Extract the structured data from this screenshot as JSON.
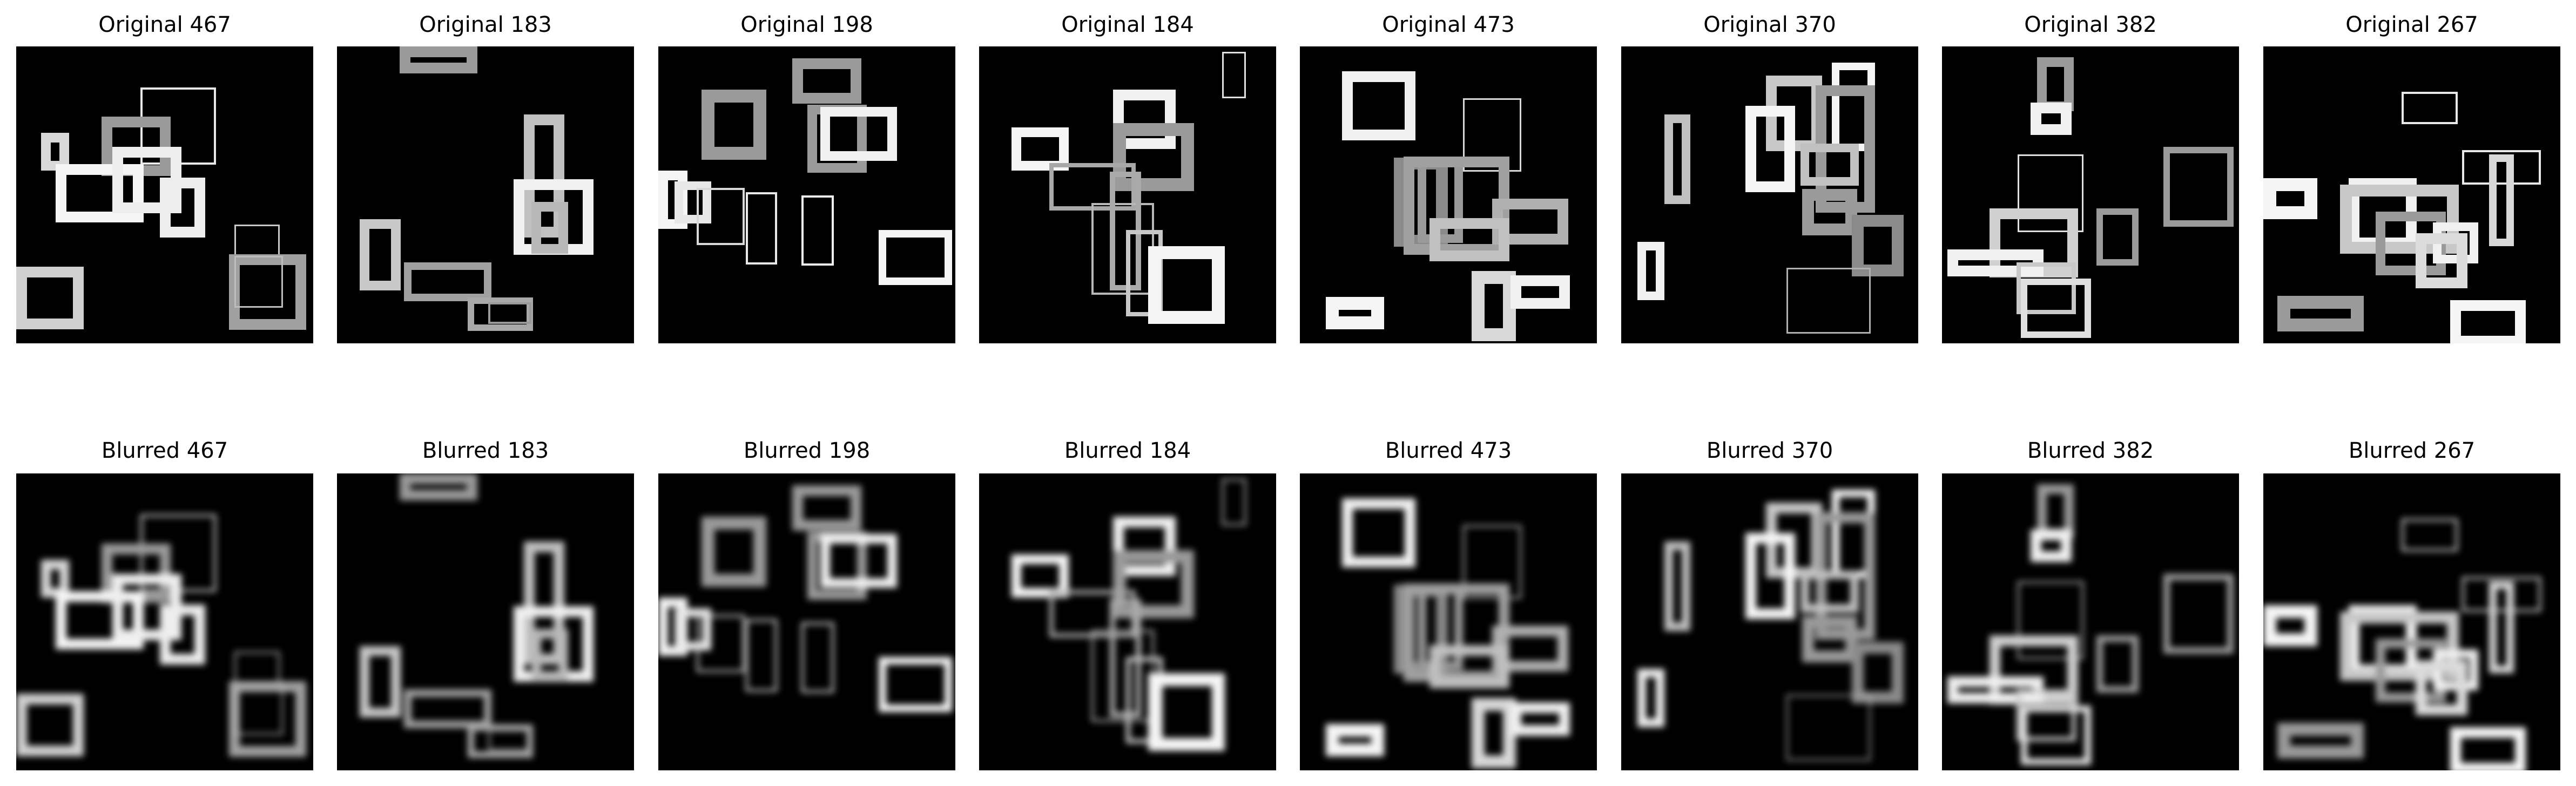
{
  "figure": {
    "background": "#000000",
    "panels": [
      {
        "row": "original",
        "title": "Original 467",
        "index": 0
      },
      {
        "row": "original",
        "title": "Original 183",
        "index": 1
      },
      {
        "row": "original",
        "title": "Original 198",
        "index": 2
      },
      {
        "row": "original",
        "title": "Original 184",
        "index": 3
      },
      {
        "row": "original",
        "title": "Original 473",
        "index": 4
      },
      {
        "row": "original",
        "title": "Original 370",
        "index": 5
      },
      {
        "row": "original",
        "title": "Original 382",
        "index": 6
      },
      {
        "row": "original",
        "title": "Original 267",
        "index": 7
      },
      {
        "row": "blurred",
        "title": "Blurred 467",
        "index": 0
      },
      {
        "row": "blurred",
        "title": "Blurred 183",
        "index": 1
      },
      {
        "row": "blurred",
        "title": "Blurred 198",
        "index": 2
      },
      {
        "row": "blurred",
        "title": "Blurred 184",
        "index": 3
      },
      {
        "row": "blurred",
        "title": "Blurred 473",
        "index": 4
      },
      {
        "row": "blurred",
        "title": "Blurred 370",
        "index": 5
      },
      {
        "row": "blurred",
        "title": "Blurred 382",
        "index": 6
      },
      {
        "row": "blurred",
        "title": "Blurred 267",
        "index": 7
      }
    ]
  }
}
